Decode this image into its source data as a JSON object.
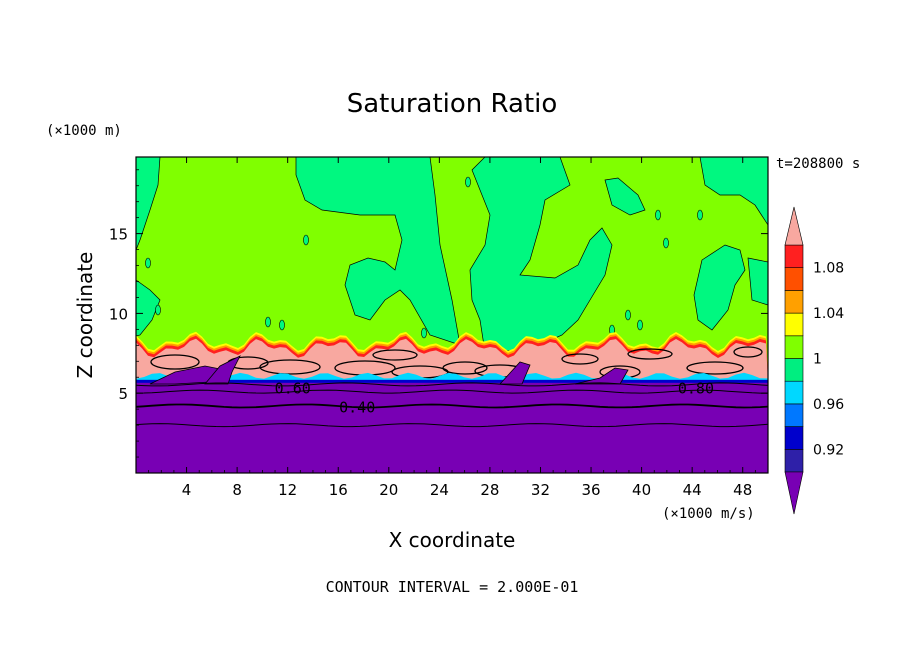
{
  "chart_data": {
    "type": "heatmap",
    "title": "Saturation Ratio",
    "xlabel": "X coordinate",
    "ylabel": "Z coordinate",
    "x_unit_label": "(×1000 m/s)",
    "y_unit_label": "(×1000 m)",
    "time_label": "t=208800 s",
    "footer": "CONTOUR INTERVAL = 2.000E-01",
    "xlim": [
      0,
      50
    ],
    "ylim": [
      0,
      19.8
    ],
    "x_ticks": [
      4,
      8,
      12,
      16,
      20,
      24,
      28,
      32,
      36,
      40,
      44,
      48
    ],
    "x_tick_labels": [
      "4",
      "8",
      "12",
      "16",
      "20",
      "24",
      "28",
      "32",
      "36",
      "40",
      "44",
      "48"
    ],
    "y_ticks": [
      5,
      10,
      15
    ],
    "y_tick_labels": [
      "5",
      "10",
      "15"
    ],
    "contour_labels": [
      {
        "text": "0.60",
        "x": 12.4,
        "z": 5.3
      },
      {
        "text": "0.40",
        "x": 17.5,
        "z": 4.1
      },
      {
        "text": "0.80",
        "x": 44.3,
        "z": 5.3
      }
    ],
    "colorbar": {
      "levels": [
        0.9,
        0.92,
        0.94,
        0.96,
        0.98,
        1.0,
        1.02,
        1.04,
        1.06,
        1.08,
        1.1
      ],
      "tick_labels": [
        "0.92",
        "0.96",
        "1",
        "1.04",
        "1.08"
      ],
      "tick_values": [
        0.92,
        0.96,
        1.0,
        1.04,
        1.08
      ],
      "colors": [
        "#5a0fa0",
        "#2e20a8",
        "#0000cc",
        "#0078ff",
        "#00d8ff",
        "#00ee80",
        "#80ff00",
        "#ffff00",
        "#ffa000",
        "#ff5000",
        "#ff2020"
      ],
      "under_color": "#7800b4",
      "over_color": "#f8a8a0"
    },
    "regions": {
      "dry_lower_layer": {
        "z_top": 5.9,
        "color": "#7800b4"
      },
      "upper_background": {
        "color": "#80ff00"
      },
      "saturated_plumes": {
        "color": "#00f880"
      },
      "cloud_layer": {
        "z_bottom": 5.9,
        "z_top": 8.0,
        "color": "#f8a8a0"
      }
    }
  }
}
